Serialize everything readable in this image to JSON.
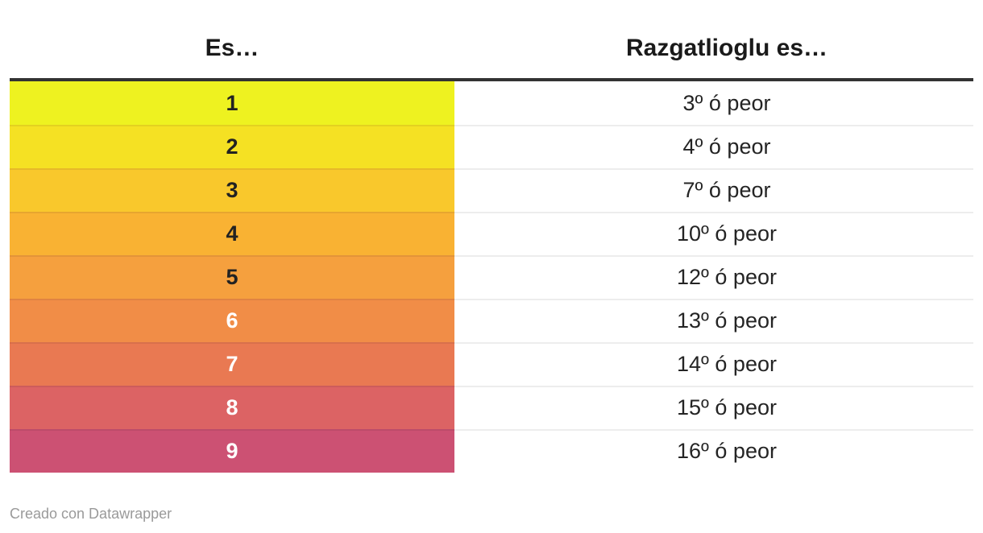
{
  "chart_data": {
    "type": "table",
    "title": "",
    "columns": [
      "Es…",
      "Razgatlioglu es…"
    ],
    "rows": [
      {
        "es": "1",
        "razgatlioglu_es": "3º ó peor",
        "row_color": "#eef220",
        "es_text_color": "#222222"
      },
      {
        "es": "2",
        "razgatlioglu_es": "4º ó peor",
        "row_color": "#f5e123",
        "es_text_color": "#222222"
      },
      {
        "es": "3",
        "razgatlioglu_es": "7º ó peor",
        "row_color": "#f9c82c",
        "es_text_color": "#222222"
      },
      {
        "es": "4",
        "razgatlioglu_es": "10º ó peor",
        "row_color": "#f9b233",
        "es_text_color": "#222222"
      },
      {
        "es": "5",
        "razgatlioglu_es": "12º ó peor",
        "row_color": "#f5a03e",
        "es_text_color": "#222222"
      },
      {
        "es": "6",
        "razgatlioglu_es": "13º ó peor",
        "row_color": "#f18d47",
        "es_text_color": "#ffffff"
      },
      {
        "es": "7",
        "razgatlioglu_es": "14º ó peor",
        "row_color": "#e97952",
        "es_text_color": "#ffffff"
      },
      {
        "es": "8",
        "razgatlioglu_es": "15º ó peor",
        "row_color": "#dc6364",
        "es_text_color": "#ffffff"
      },
      {
        "es": "9",
        "razgatlioglu_es": "16º ó peor",
        "row_color": "#cc5173",
        "es_text_color": "#ffffff"
      }
    ],
    "layout_hints": {
      "legend_position": "none",
      "grid": "row-separators-only",
      "first_column_fill": "yellow-to-pink gradient scale"
    }
  },
  "styles": {
    "background": "#ffffff",
    "top_rule_color": "#333333",
    "header_text_color": "#1a1a1a",
    "cell_text_color": "#242424",
    "white_row_separator": "#ededed",
    "colored_row_separator": "rgba(0,0,0,0.07)",
    "footer_text_color": "#9a9a9a"
  },
  "footer": {
    "credit": "Creado con Datawrapper"
  }
}
